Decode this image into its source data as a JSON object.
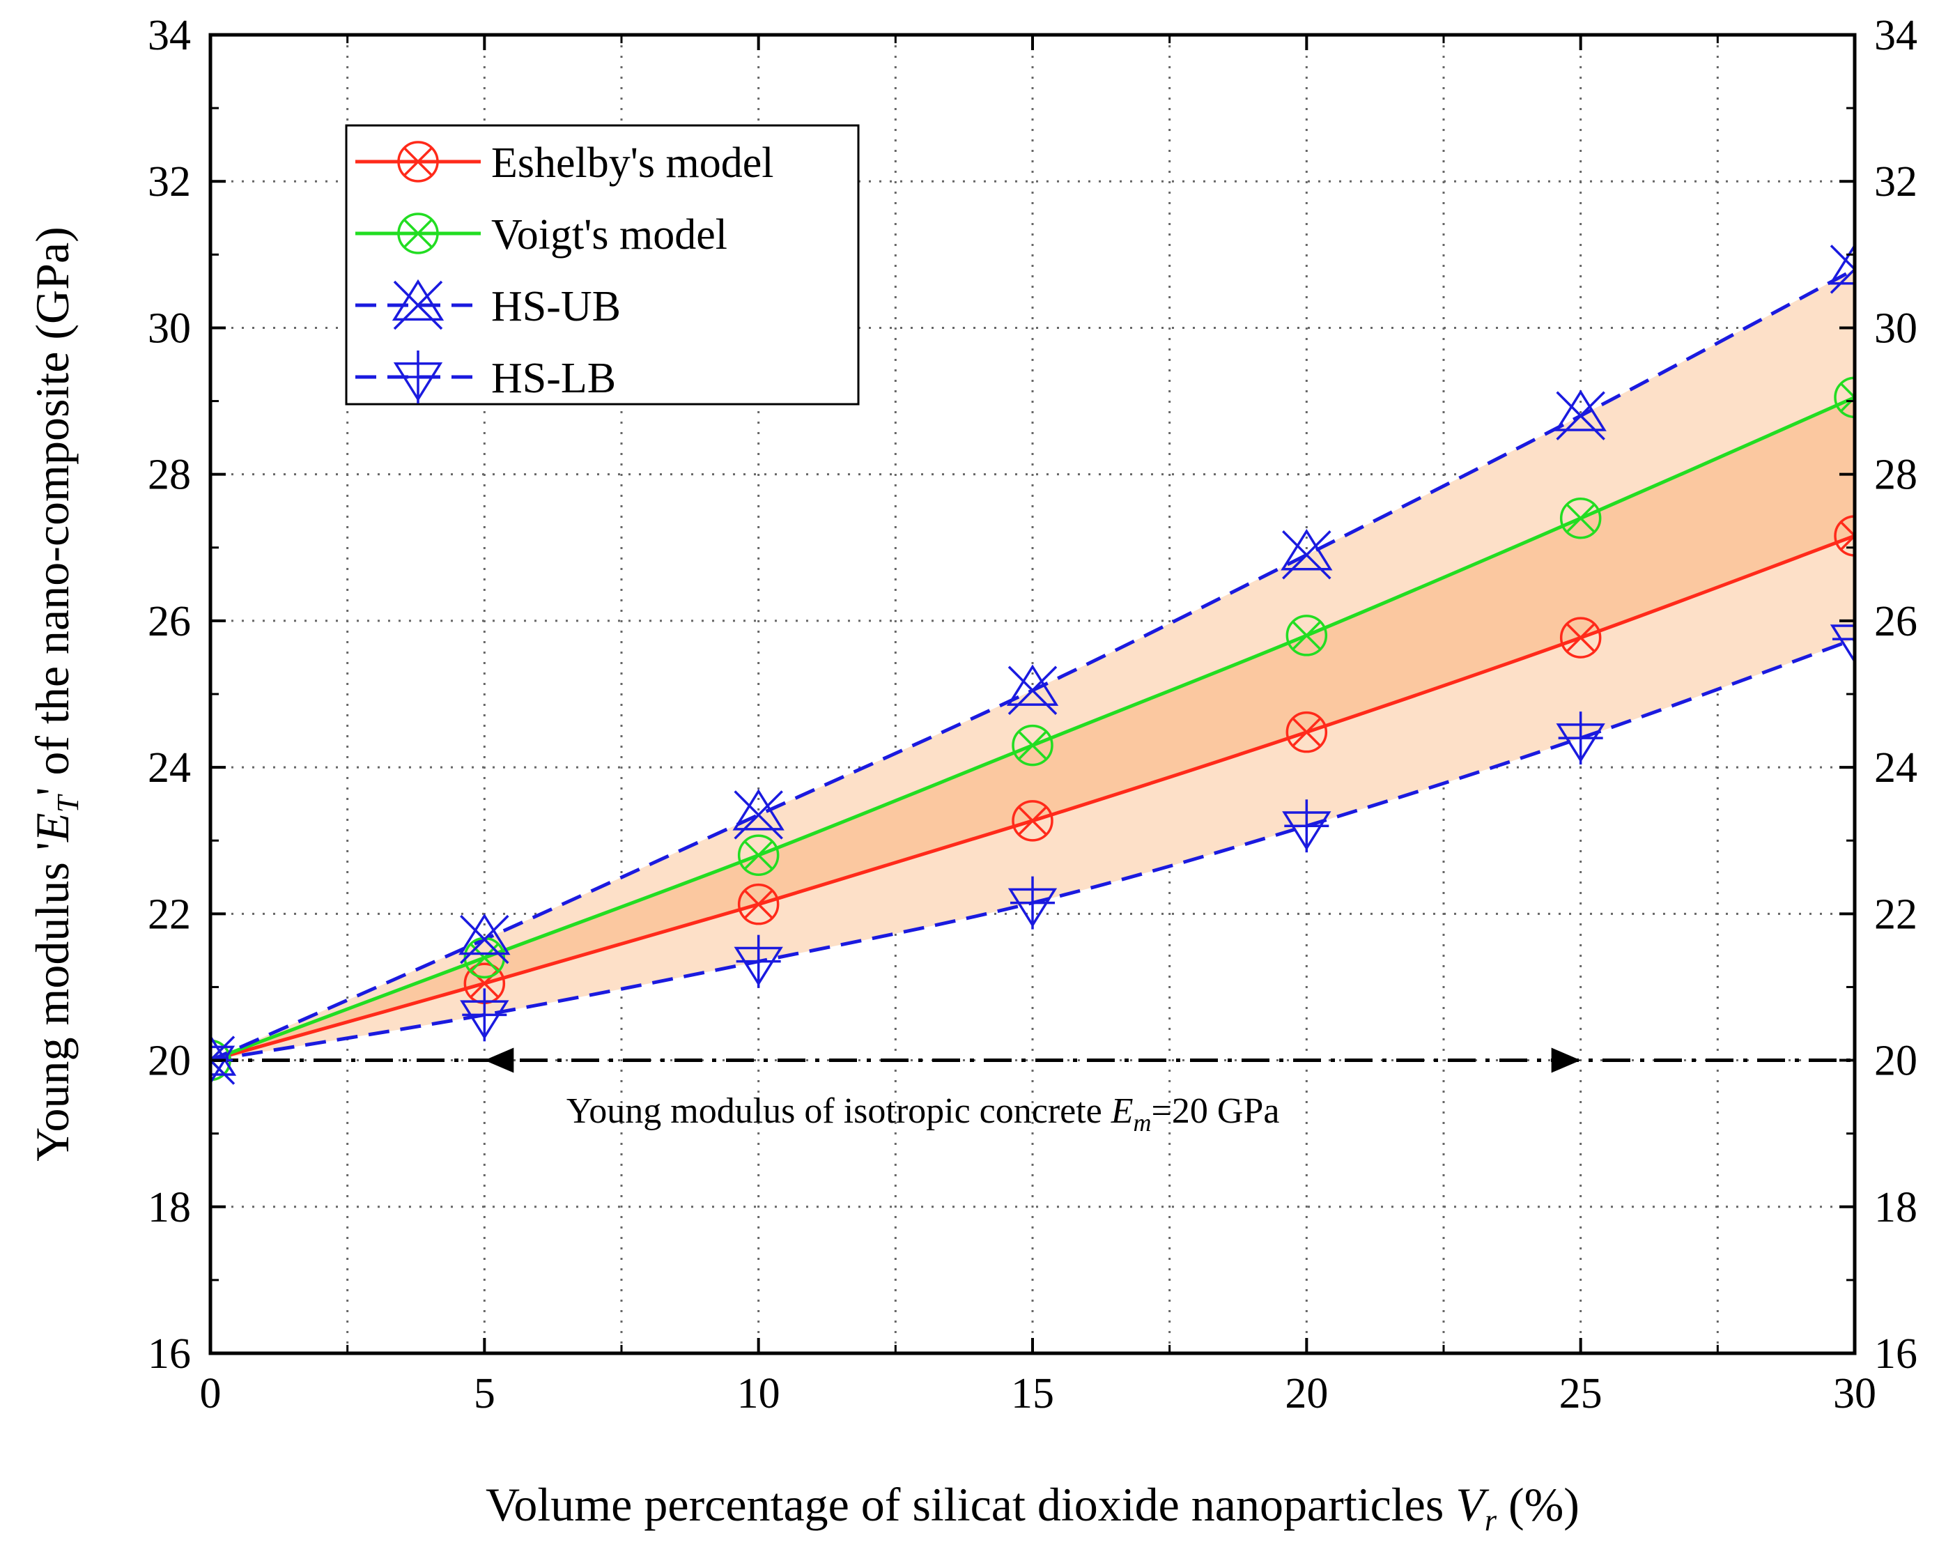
{
  "chart_data": {
    "type": "line",
    "title": "",
    "xlabel": {
      "prefix": "Volume percentage of silicat dioxide nanoparticles ",
      "symbol": "V",
      "subscript": "r",
      "suffix": " (%)"
    },
    "ylabel": {
      "prefix": "Young modulus '",
      "symbol": "E",
      "subscript": "T",
      "suffix": "' of the nano-composite (GPa)"
    },
    "xlim": [
      0,
      30
    ],
    "ylim": [
      16,
      34
    ],
    "xticks": [
      0,
      5,
      10,
      15,
      20,
      25,
      30
    ],
    "yticks": [
      16,
      18,
      20,
      22,
      24,
      26,
      28,
      30,
      32,
      34
    ],
    "x_minor_grid": [
      2.5,
      7.5,
      12.5,
      17.5,
      22.5,
      27.5
    ],
    "grid": true,
    "x": [
      0,
      5,
      10,
      15,
      20,
      25,
      30
    ],
    "series": [
      {
        "name": "Eshelby's model",
        "values": [
          20.0,
          21.05,
          22.13,
          23.27,
          24.48,
          25.77,
          27.16
        ],
        "color": "#ff2a1a",
        "linestyle": "solid",
        "marker": "circle-x"
      },
      {
        "name": "Voigt's model",
        "values": [
          20.0,
          21.4,
          22.8,
          24.3,
          25.8,
          27.4,
          29.05
        ],
        "color": "#22dd22",
        "linestyle": "solid",
        "marker": "circle-x"
      },
      {
        "name": "HS-UB",
        "values": [
          20.0,
          21.65,
          23.35,
          25.05,
          26.9,
          28.8,
          30.8
        ],
        "color": "#1a1adf",
        "linestyle": "dashed",
        "marker": "x-triangle-up"
      },
      {
        "name": "HS-LB",
        "values": [
          20.0,
          20.62,
          21.35,
          22.15,
          23.2,
          24.4,
          25.75
        ],
        "color": "#1a1adf",
        "linestyle": "dashed",
        "marker": "plus-triangle-down"
      }
    ],
    "fill_colors": {
      "outer_band": "#fde0c8",
      "inner_band": "#fbc8a0"
    },
    "reference_line": {
      "y": 20,
      "x_range": [
        0,
        30
      ],
      "arrow_from_x": 5,
      "arrow_to_x": 25,
      "annotation": {
        "prefix": "Young modulus of isotropic concrete ",
        "symbol": "E",
        "subscript": "m",
        "suffix": "=20 GPa",
        "x": 13,
        "y": 19.3
      }
    },
    "legend_position": "top-left"
  }
}
